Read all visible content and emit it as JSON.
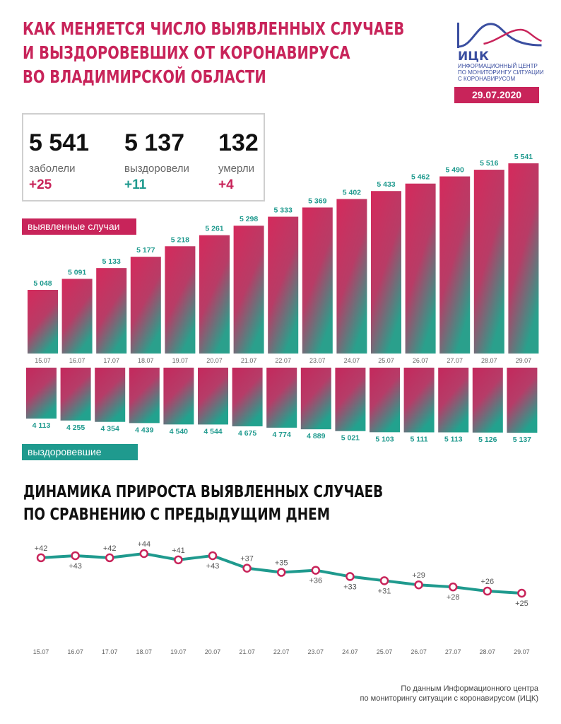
{
  "header": {
    "title_lines": [
      "КАК МЕНЯЕТСЯ ЧИСЛО ВЫЯВЛЕННЫХ СЛУЧАЕВ",
      "И ВЫЗДОРОВЕВШИХ ОТ КОРОНАВИРУСА",
      "ВО ВЛАДИМИРСКОЙ ОБЛАСТИ"
    ],
    "logo_name": "ИЦК",
    "logo_sub_lines": [
      "ИНФОРМАЦИОННЫЙ ЦЕНТР",
      "ПО МОНИТОРИНГУ СИТУАЦИИ",
      "С КОРОНАВИРУСОМ"
    ],
    "date": "29.07.2020"
  },
  "stats": [
    {
      "value": "5 541",
      "label": "заболели",
      "delta": "+25",
      "color": "#c8245a"
    },
    {
      "value": "5 137",
      "label": "выздоровели",
      "delta": "+11",
      "color": "#1f9a8e"
    },
    {
      "value": "132",
      "label": "умерли",
      "delta": "+4",
      "color": "#c8245a"
    }
  ],
  "legend": {
    "cases": "выявленные случаи",
    "recovered": "выздоровевшие"
  },
  "section2_title_lines": [
    "ДИНАМИКА ПРИРОСТА ВЫЯВЛЕННЫХ СЛУЧАЕВ",
    "ПО СРАВНЕНИЮ С ПРЕДЫДУЩИМ ДНЕМ"
  ],
  "source_lines": [
    "По данным Информационного центра",
    "по мониторингу ситуации с коронавирусом (ИЦК)"
  ],
  "colors": {
    "accent": "#c8245a",
    "teal": "#1f9a8e",
    "logo": "#3a4ea0"
  },
  "chart_data": [
    {
      "type": "bar",
      "categories": [
        "15.07",
        "16.07",
        "17.07",
        "18.07",
        "19.07",
        "20.07",
        "21.07",
        "22.07",
        "23.07",
        "24.07",
        "25.07",
        "26.07",
        "27.07",
        "28.07",
        "29.07"
      ],
      "series": [
        {
          "name": "выявленные случаи",
          "values": [
            5048,
            5091,
            5133,
            5177,
            5218,
            5261,
            5298,
            5333,
            5369,
            5402,
            5433,
            5462,
            5490,
            5516,
            5541
          ],
          "labels": [
            "5 048",
            "5 091",
            "5 133",
            "5 177",
            "5 218",
            "5 261",
            "5 298",
            "5 333",
            "5 369",
            "5 402",
            "5 433",
            "5 462",
            "5 490",
            "5 516",
            "5 541"
          ]
        },
        {
          "name": "выздоровевшие",
          "values": [
            4113,
            4255,
            4354,
            4439,
            4540,
            4544,
            4675,
            4774,
            4889,
            5021,
            5103,
            5111,
            5113,
            5126,
            5137
          ],
          "labels": [
            "4 113",
            "4 255",
            "4 354",
            "4 439",
            "4 540",
            "4 544",
            "4 675",
            "4 774",
            "4 889",
            "5 021",
            "5 103",
            "5 111",
            "5 113",
            "5 126",
            "5 137"
          ]
        }
      ]
    },
    {
      "type": "line",
      "title": "ДИНАМИКА ПРИРОСТА ВЫЯВЛЕННЫХ СЛУЧАЕВ ПО СРАВНЕНИЮ С ПРЕДЫДУЩИМ ДНЕМ",
      "categories": [
        "15.07",
        "16.07",
        "17.07",
        "18.07",
        "19.07",
        "20.07",
        "21.07",
        "22.07",
        "23.07",
        "24.07",
        "25.07",
        "26.07",
        "27.07",
        "28.07",
        "29.07"
      ],
      "values": [
        42,
        43,
        42,
        44,
        41,
        43,
        37,
        35,
        36,
        33,
        31,
        29,
        28,
        26,
        25
      ],
      "labels": [
        "+42",
        "+43",
        "+42",
        "+44",
        "+41",
        "+43",
        "+37",
        "+35",
        "+36",
        "+33",
        "+31",
        "+29",
        "+28",
        "+26",
        "+25"
      ],
      "label_pos": [
        "above",
        "below",
        "above",
        "above",
        "above",
        "below",
        "above",
        "above",
        "below",
        "below",
        "below",
        "above",
        "below",
        "above",
        "below"
      ]
    }
  ]
}
